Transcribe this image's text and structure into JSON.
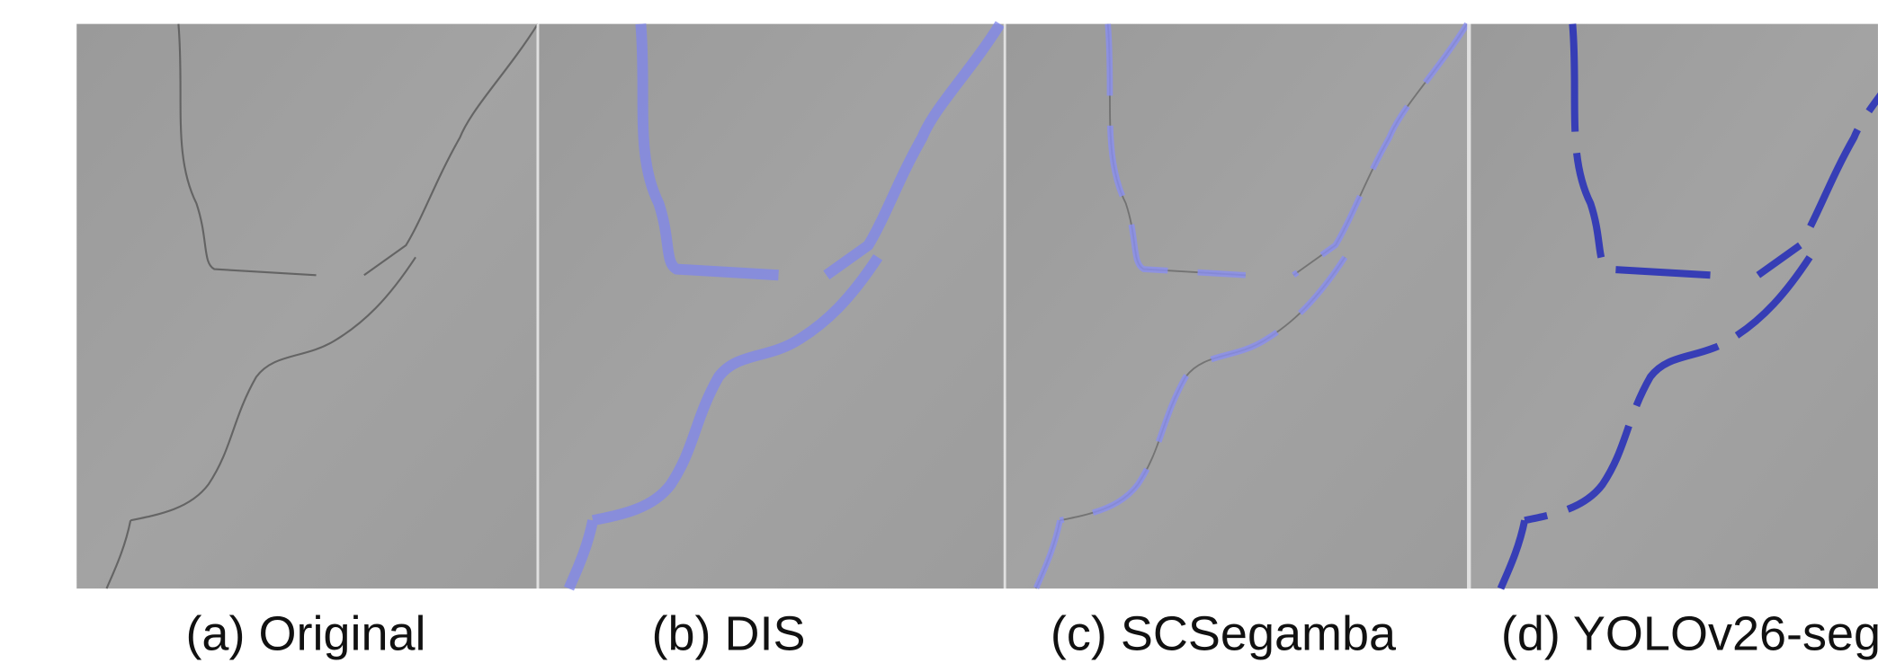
{
  "panels": [
    {
      "label": "(a) Original"
    },
    {
      "label": "(b) DIS"
    },
    {
      "label": "(c) SCSegamba"
    },
    {
      "label": "(d) YOLOv26-seg"
    }
  ]
}
